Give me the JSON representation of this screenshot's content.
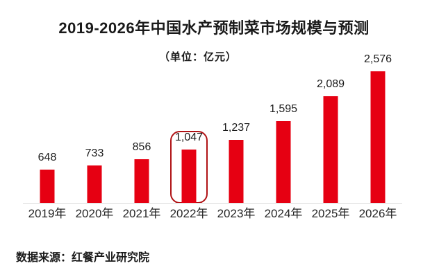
{
  "header": {
    "title": "2019-2026年中国水产预制菜市场规模与预测",
    "subtitle": "（单位：亿元）"
  },
  "footer": {
    "source": "数据来源：红餐产业研究院"
  },
  "chart_data": {
    "type": "bar",
    "title": "2019-2026年中国水产预制菜市场规模与预测",
    "subtitle": "（单位：亿元）",
    "unit": "亿元",
    "categories": [
      "2019年",
      "2020年",
      "2021年",
      "2022年",
      "2023年",
      "2024年",
      "2025年",
      "2026年"
    ],
    "values": [
      648,
      733,
      856,
      1047,
      1237,
      1595,
      2089,
      2576
    ],
    "value_labels": [
      "648",
      "733",
      "856",
      "1,047",
      "1,237",
      "1,595",
      "2,089",
      "2,576"
    ],
    "highlighted_index": 3,
    "highlighted_category": "2022年",
    "ylim": [
      0,
      2576
    ],
    "xlabel": "",
    "ylabel": "",
    "grid": false,
    "legend": "none",
    "colors": {
      "bar": "#e60012",
      "highlight_border": "#b01215",
      "axis_line": "#d9d9d9",
      "text": "#1a1a1a"
    },
    "source": "数据来源：红餐产业研究院"
  }
}
